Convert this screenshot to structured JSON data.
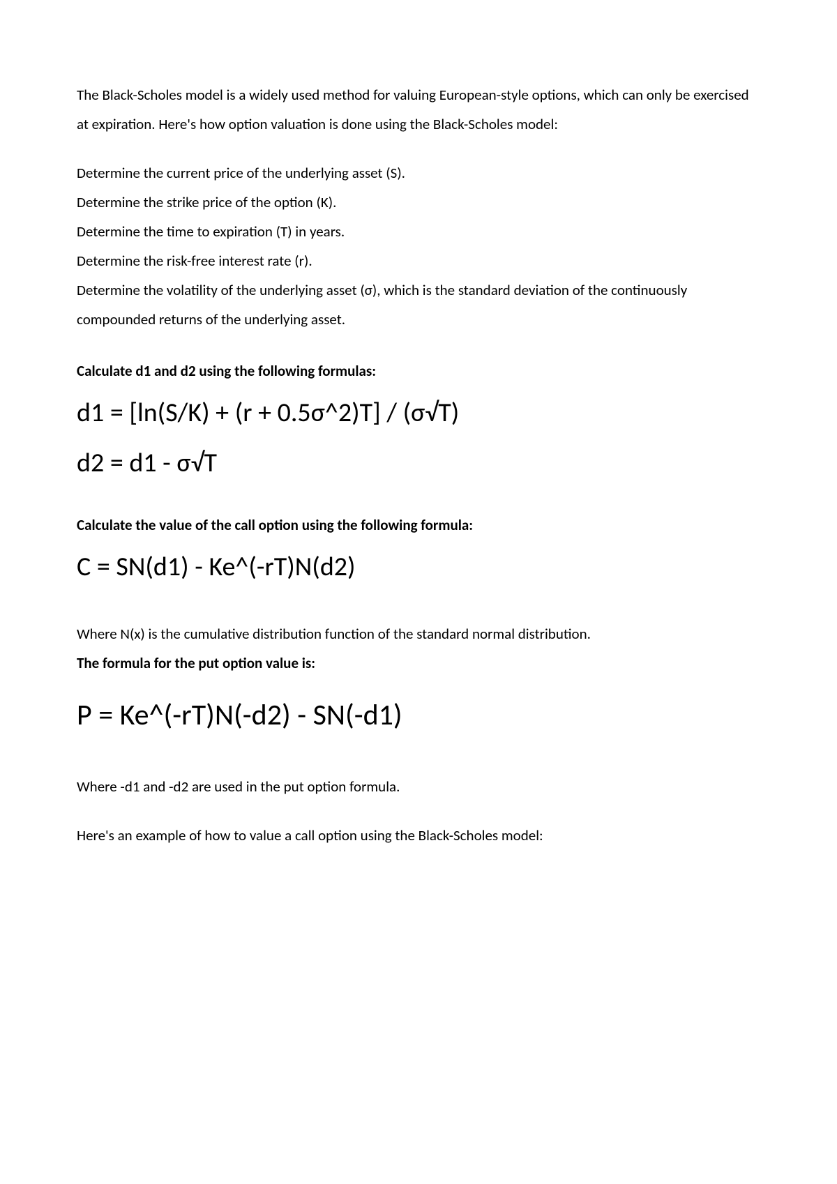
{
  "intro": "The Black-Scholes model is a widely used method for valuing European-style options, which can only be exercised at expiration. Here's how option valuation is done using the Black-Scholes model:",
  "steps": {
    "s1": "Determine the current price of the underlying asset (S).",
    "s2": "Determine the strike price of the option (K).",
    "s3": "Determine the time to expiration (T) in years.",
    "s4": "Determine the risk-free interest rate (r).",
    "s5": "Determine the volatility of the underlying asset (σ), which is the standard deviation of the continuously compounded returns of the underlying asset."
  },
  "h1": "Calculate d1 and d2 using the following formulas:",
  "f_d1": "d1 = [ln(S/K) + (r + 0.5σ^2)T] / (σ√T)",
  "f_d2": "d2 = d1 - σ√T",
  "h2": "Calculate the value of the call option using the following formula:",
  "f_call": "C = SN(d1) - Ke^(-rT)N(d2)",
  "nx": "Where N(x) is the cumulative distribution function of the standard normal distribution.",
  "h3": "The formula for the put option value is:",
  "f_put": "P = Ke^(-rT)N(-d2) - SN(-d1)",
  "putnote": "Where -d1 and -d2 are used in the put option formula.",
  "example": "Here's an example of how to value a call option using the Black-Scholes model:"
}
